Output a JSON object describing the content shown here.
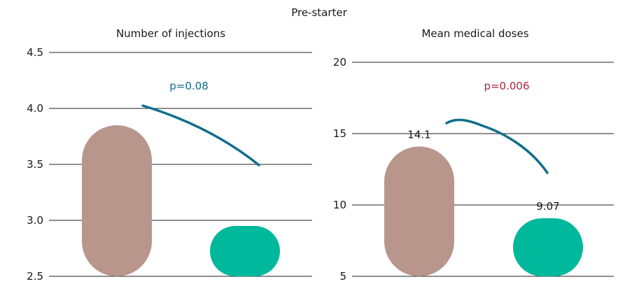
{
  "colors": {
    "pre_bar": "#b8968b",
    "post_bar": "#00b89c",
    "curve": "#0f6e8c",
    "p_text_left": "#0f6e8c",
    "p_text_right": "#a8263e"
  },
  "chart_data": [
    {
      "type": "bar",
      "title": "Pre-starter",
      "subtitle": "Number of injections",
      "categories": [
        "",
        ""
      ],
      "values": [
        3.85,
        2.95
      ],
      "ylim": [
        2.5,
        4.5
      ],
      "yticks": [
        "2.5",
        "3.0",
        "3.5",
        "4.0",
        "4.5"
      ],
      "data_labels": [
        "",
        ""
      ],
      "annotation": "p=0.08",
      "grid": true
    },
    {
      "type": "bar",
      "subtitle": "Mean medical doses",
      "categories": [
        "",
        ""
      ],
      "values": [
        14.1,
        9.07
      ],
      "ylim": [
        5,
        20
      ],
      "yticks": [
        "5",
        "10",
        "15",
        "20"
      ],
      "data_labels": [
        "14.1",
        "9.07"
      ],
      "annotation": "p=0.006",
      "grid": true
    }
  ]
}
